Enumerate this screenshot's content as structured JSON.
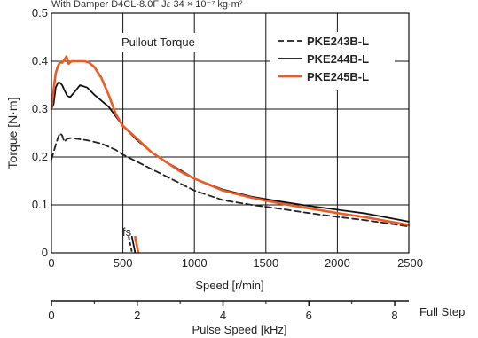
{
  "header_text": "With Damper  D4CL-8.0F    Jₗ: 34 × 10⁻⁷ kg·m²",
  "chart_data": {
    "type": "line",
    "annotation_pullout": "Pullout Torque",
    "annotation_fs": "fs",
    "ylabel": "Torque [N·m]",
    "xlabel": "Speed  [r/min]",
    "x2label": "Pulse Speed  [kHz]",
    "x2_side_label": "Full Step",
    "xlim": [
      0,
      2500
    ],
    "ylim": [
      0,
      0.5
    ],
    "x2lim": [
      0,
      8.33
    ],
    "x_ticks": [
      "0",
      "500",
      "1000",
      "1500",
      "2000",
      "2500"
    ],
    "y_ticks": [
      "0",
      "0.1",
      "0.2",
      "0.3",
      "0.4",
      "0.5"
    ],
    "x2_ticks": [
      "0",
      "2",
      "4",
      "6",
      "8"
    ],
    "grid": true,
    "legend_position": "top-right",
    "series": [
      {
        "name": "PKE243B-L",
        "color": "#222222",
        "dash": "dashed",
        "x": [
          0,
          15,
          30,
          45,
          60,
          75,
          90,
          110,
          140,
          180,
          250,
          350,
          450,
          500,
          600,
          700,
          800,
          900,
          1000,
          1200,
          1400,
          1600,
          1800,
          2000,
          2200,
          2500
        ],
        "y": [
          0.195,
          0.21,
          0.225,
          0.24,
          0.25,
          0.245,
          0.232,
          0.238,
          0.24,
          0.238,
          0.235,
          0.228,
          0.215,
          0.205,
          0.19,
          0.175,
          0.16,
          0.145,
          0.13,
          0.11,
          0.1,
          0.092,
          0.083,
          0.075,
          0.068,
          0.055
        ]
      },
      {
        "name": "PKE244B-L",
        "color": "#111111",
        "dash": "solid",
        "x": [
          0,
          15,
          30,
          45,
          60,
          75,
          90,
          110,
          130,
          160,
          200,
          250,
          300,
          400,
          500,
          600,
          700,
          800,
          900,
          1000,
          1200,
          1400,
          1600,
          1800,
          2000,
          2200,
          2500
        ],
        "y": [
          0.3,
          0.31,
          0.345,
          0.355,
          0.355,
          0.35,
          0.34,
          0.328,
          0.325,
          0.335,
          0.35,
          0.345,
          0.33,
          0.305,
          0.265,
          0.235,
          0.21,
          0.19,
          0.173,
          0.155,
          0.132,
          0.117,
          0.107,
          0.098,
          0.09,
          0.082,
          0.065
        ]
      },
      {
        "name": "PKE245B-L",
        "color": "#F05A22",
        "dash": "solid",
        "x": [
          0,
          15,
          30,
          45,
          60,
          75,
          90,
          105,
          120,
          140,
          170,
          200,
          230,
          260,
          300,
          350,
          400,
          450,
          500,
          600,
          700,
          800,
          900,
          1000,
          1200,
          1400,
          1600,
          1800,
          2000,
          2200,
          2500
        ],
        "y": [
          0.3,
          0.34,
          0.375,
          0.39,
          0.398,
          0.397,
          0.403,
          0.41,
          0.395,
          0.4,
          0.4,
          0.4,
          0.4,
          0.398,
          0.388,
          0.365,
          0.33,
          0.29,
          0.265,
          0.238,
          0.21,
          0.19,
          0.17,
          0.155,
          0.13,
          0.115,
          0.103,
          0.093,
          0.083,
          0.074,
          0.058
        ]
      }
    ]
  }
}
